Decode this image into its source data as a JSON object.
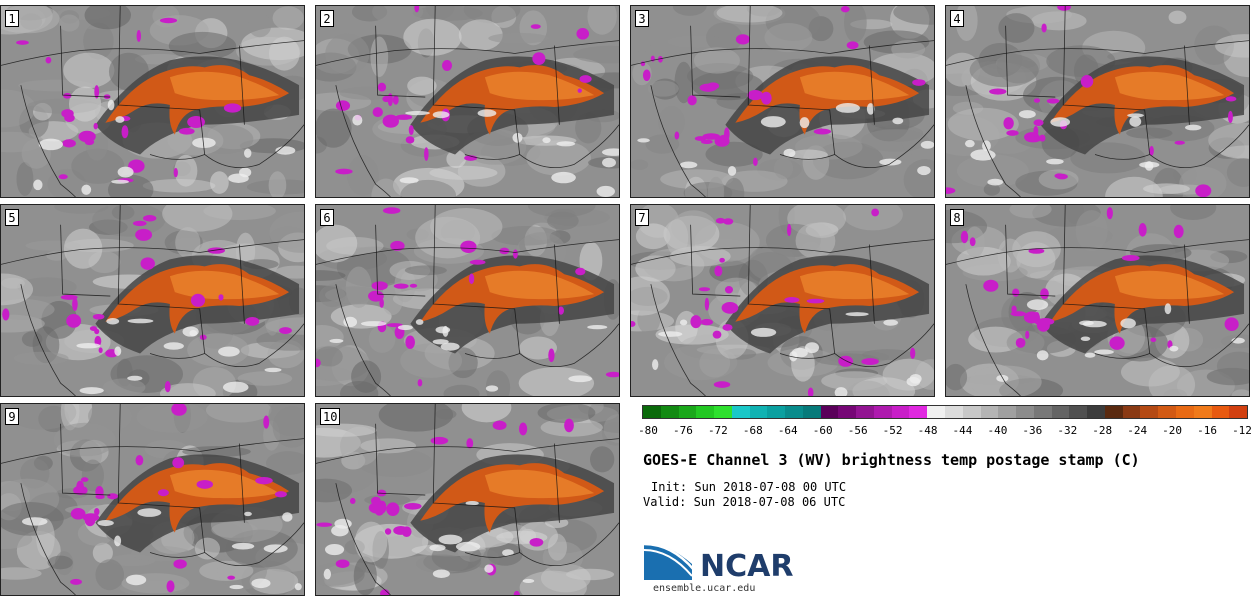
{
  "panels": [
    "1",
    "2",
    "3",
    "4",
    "5",
    "6",
    "7",
    "8",
    "9",
    "10"
  ],
  "colorbar": {
    "tick_labels": [
      "-80",
      "-76",
      "-72",
      "-68",
      "-64",
      "-60",
      "-56",
      "-52",
      "-48",
      "-44",
      "-40",
      "-36",
      "-32",
      "-28",
      "-24",
      "-20",
      "-16",
      "-12"
    ],
    "colors": [
      "#0a6a0a",
      "#128a12",
      "#1aa81a",
      "#22c822",
      "#2ee02e",
      "#1ac8c8",
      "#10b2b2",
      "#0aa0a0",
      "#088c8c",
      "#067a7a",
      "#5a005a",
      "#760676",
      "#921492",
      "#ae1aae",
      "#c81ec8",
      "#e028e0",
      "#f0f0f0",
      "#dcdcdc",
      "#c8c8c8",
      "#b4b4b4",
      "#a0a0a0",
      "#8c8c8c",
      "#787878",
      "#646464",
      "#505050",
      "#3c3c3c",
      "#5a2a10",
      "#8a3a14",
      "#b44a14",
      "#d25a14",
      "#e86a14",
      "#f07a1a",
      "#e85a10",
      "#d24010"
    ]
  },
  "title": "GOES-E Channel 3 (WV) brightness temp postage stamp (C)",
  "init": "Init: Sun 2018-07-08 00 UTC",
  "valid": "Valid: Sun 2018-07-08 06 UTC",
  "logo": {
    "name": "NCAR",
    "site": "ensemble.ucar.edu"
  }
}
